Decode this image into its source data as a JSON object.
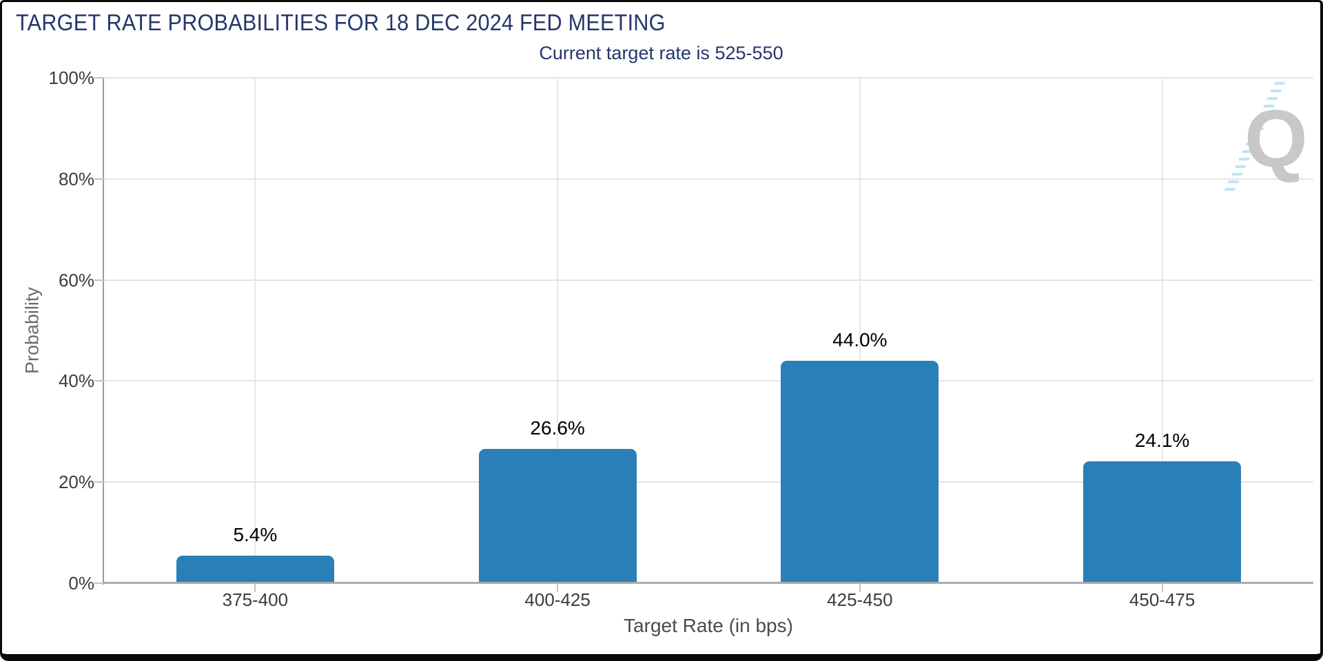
{
  "chart_data": {
    "type": "bar",
    "title": "TARGET RATE PROBABILITIES FOR 18 DEC 2024 FED MEETING",
    "subtitle": "Current target rate is 525-550",
    "categories": [
      "375-400",
      "400-425",
      "425-450",
      "450-475"
    ],
    "values": [
      5.4,
      26.6,
      44.0,
      24.1
    ],
    "value_labels": [
      "5.4%",
      "26.6%",
      "44.0%",
      "24.1%"
    ],
    "xlabel": "Target Rate (in bps)",
    "ylabel": "Probability",
    "ylim": [
      0,
      100
    ],
    "ytick_values": [
      0,
      20,
      40,
      60,
      80,
      100
    ],
    "ytick_labels": [
      "0%",
      "20%",
      "40%",
      "60%",
      "80%",
      "100%"
    ],
    "grid": true,
    "legend": "none",
    "bar_color": "#2a7fb8"
  },
  "watermark": {
    "letter": "Q"
  },
  "colors": {
    "title_navy": "#24376b",
    "bar_blue": "#2a7fb8",
    "gridline": "#e4e4e4",
    "axis_gray": "#ababab",
    "tick_text": "#3c3c3c",
    "watermark_gray": "#c8c8c8",
    "watermark_blue": "#b9e4f6"
  }
}
